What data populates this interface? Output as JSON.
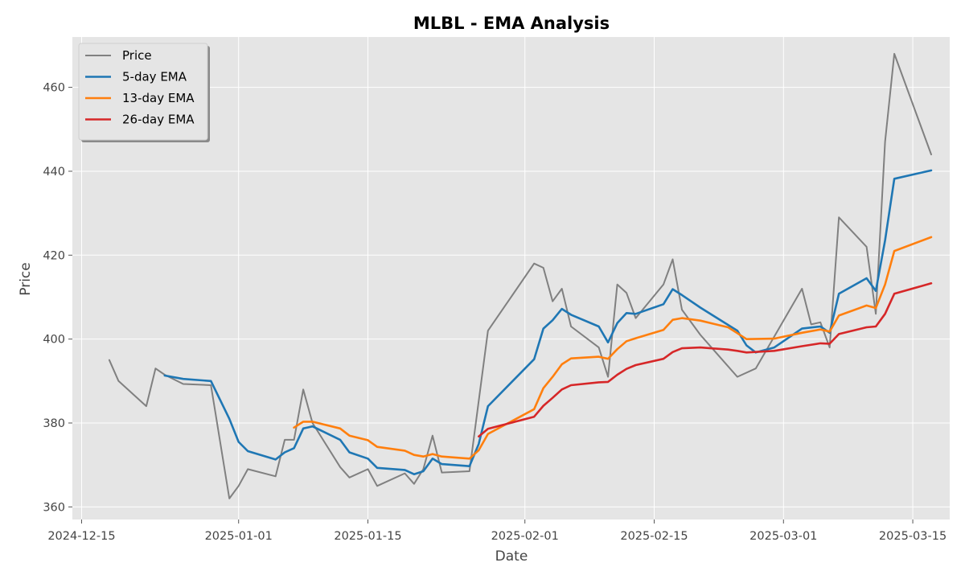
{
  "chart_data": {
    "type": "line",
    "title": "MLBL - EMA Analysis",
    "xlabel": "Date",
    "ylabel": "Price",
    "xlim": [
      "2024-12-14",
      "2025-03-19"
    ],
    "ylim": [
      357,
      472
    ],
    "x_ticks": [
      "2024-12-15",
      "2025-01-01",
      "2025-01-15",
      "2025-02-01",
      "2025-02-15",
      "2025-03-01",
      "2025-03-15"
    ],
    "y_ticks": [
      360,
      380,
      400,
      420,
      440,
      460
    ],
    "grid": true,
    "legend_position": "top-left",
    "colors": {
      "plot_background": "#e5e5e5",
      "grid": "#ffffff",
      "Price": "#808080",
      "5-day EMA": "#1f77b4",
      "13-day EMA": "#ff7f0e",
      "26-day EMA": "#d62728"
    },
    "series": [
      {
        "name": "Price",
        "points": [
          [
            "2024-12-18",
            395.0
          ],
          [
            "2024-12-19",
            390.0
          ],
          [
            "2024-12-22",
            384.0
          ],
          [
            "2024-12-23",
            393.0
          ],
          [
            "2024-12-24",
            391.5
          ],
          [
            "2024-12-26",
            389.3
          ],
          [
            "2024-12-29",
            389.0
          ],
          [
            "2024-12-31",
            362.0
          ],
          [
            "2025-01-01",
            365.0
          ],
          [
            "2025-01-02",
            369.0
          ],
          [
            "2025-01-05",
            367.3
          ],
          [
            "2025-01-06",
            376.0
          ],
          [
            "2025-01-07",
            376.0
          ],
          [
            "2025-01-08",
            388.0
          ],
          [
            "2025-01-09",
            380.0
          ],
          [
            "2025-01-12",
            369.5
          ],
          [
            "2025-01-13",
            367.0
          ],
          [
            "2025-01-15",
            369.0
          ],
          [
            "2025-01-16",
            365.0
          ],
          [
            "2025-01-19",
            368.0
          ],
          [
            "2025-01-20",
            365.5
          ],
          [
            "2025-01-21",
            369.0
          ],
          [
            "2025-01-22",
            377.0
          ],
          [
            "2025-01-23",
            368.2
          ],
          [
            "2025-01-26",
            368.5
          ],
          [
            "2025-01-28",
            402.0
          ],
          [
            "2025-02-02",
            418.0
          ],
          [
            "2025-02-03",
            417.0
          ],
          [
            "2025-02-04",
            409.0
          ],
          [
            "2025-02-05",
            412.0
          ],
          [
            "2025-02-06",
            403.0
          ],
          [
            "2025-02-09",
            398.0
          ],
          [
            "2025-02-10",
            391.0
          ],
          [
            "2025-02-11",
            413.0
          ],
          [
            "2025-02-12",
            411.0
          ],
          [
            "2025-02-13",
            405.0
          ],
          [
            "2025-02-16",
            413.0
          ],
          [
            "2025-02-17",
            419.0
          ],
          [
            "2025-02-18",
            407.0
          ],
          [
            "2025-02-20",
            401.0
          ],
          [
            "2025-02-24",
            391.0
          ],
          [
            "2025-02-26",
            393.0
          ],
          [
            "2025-03-03",
            412.0
          ],
          [
            "2025-03-04",
            403.5
          ],
          [
            "2025-03-05",
            404.0
          ],
          [
            "2025-03-06",
            398.0
          ],
          [
            "2025-03-07",
            429.0
          ],
          [
            "2025-03-10",
            422.0
          ],
          [
            "2025-03-11",
            406.0
          ],
          [
            "2025-03-12",
            447.0
          ],
          [
            "2025-03-13",
            468.0
          ],
          [
            "2025-03-17",
            444.0
          ]
        ]
      },
      {
        "name": "5-day EMA",
        "points": [
          [
            "2024-12-24",
            391.3
          ],
          [
            "2024-12-26",
            390.5
          ],
          [
            "2024-12-29",
            390.0
          ],
          [
            "2024-12-31",
            381.0
          ],
          [
            "2025-01-01",
            375.5
          ],
          [
            "2025-01-02",
            373.3
          ],
          [
            "2025-01-05",
            371.3
          ],
          [
            "2025-01-06",
            373.0
          ],
          [
            "2025-01-07",
            374.0
          ],
          [
            "2025-01-08",
            378.7
          ],
          [
            "2025-01-09",
            379.2
          ],
          [
            "2025-01-12",
            376.0
          ],
          [
            "2025-01-13",
            373.0
          ],
          [
            "2025-01-15",
            371.5
          ],
          [
            "2025-01-16",
            369.3
          ],
          [
            "2025-01-19",
            368.8
          ],
          [
            "2025-01-20",
            367.8
          ],
          [
            "2025-01-21",
            368.5
          ],
          [
            "2025-01-22",
            371.5
          ],
          [
            "2025-01-23",
            370.2
          ],
          [
            "2025-01-26",
            369.7
          ],
          [
            "2025-01-27",
            375.0
          ],
          [
            "2025-01-28",
            384.0
          ],
          [
            "2025-02-02",
            395.2
          ],
          [
            "2025-02-03",
            402.5
          ],
          [
            "2025-02-04",
            404.5
          ],
          [
            "2025-02-05",
            407.2
          ],
          [
            "2025-02-06",
            405.8
          ],
          [
            "2025-02-09",
            403.0
          ],
          [
            "2025-02-10",
            399.2
          ],
          [
            "2025-02-11",
            403.8
          ],
          [
            "2025-02-12",
            406.2
          ],
          [
            "2025-02-13",
            406.0
          ],
          [
            "2025-02-16",
            408.3
          ],
          [
            "2025-02-17",
            411.9
          ],
          [
            "2025-02-18",
            410.5
          ],
          [
            "2025-02-20",
            407.5
          ],
          [
            "2025-02-24",
            402.0
          ],
          [
            "2025-02-25",
            398.5
          ],
          [
            "2025-02-26",
            396.8
          ],
          [
            "2025-02-28",
            398.0
          ],
          [
            "2025-03-03",
            402.5
          ],
          [
            "2025-03-05",
            403.0
          ],
          [
            "2025-03-06",
            401.5
          ],
          [
            "2025-03-07",
            410.8
          ],
          [
            "2025-03-10",
            414.5
          ],
          [
            "2025-03-11",
            411.5
          ],
          [
            "2025-03-12",
            423.5
          ],
          [
            "2025-03-13",
            438.2
          ],
          [
            "2025-03-17",
            440.2
          ]
        ]
      },
      {
        "name": "13-day EMA",
        "points": [
          [
            "2025-01-07",
            378.9
          ],
          [
            "2025-01-08",
            380.3
          ],
          [
            "2025-01-09",
            380.3
          ],
          [
            "2025-01-12",
            378.7
          ],
          [
            "2025-01-13",
            377.0
          ],
          [
            "2025-01-15",
            375.9
          ],
          [
            "2025-01-16",
            374.3
          ],
          [
            "2025-01-19",
            373.4
          ],
          [
            "2025-01-20",
            372.4
          ],
          [
            "2025-01-21",
            372.0
          ],
          [
            "2025-01-22",
            372.6
          ],
          [
            "2025-01-23",
            372.0
          ],
          [
            "2025-01-26",
            371.5
          ],
          [
            "2025-01-27",
            373.5
          ],
          [
            "2025-01-28",
            377.4
          ],
          [
            "2025-02-02",
            383.3
          ],
          [
            "2025-02-03",
            388.3
          ],
          [
            "2025-02-04",
            391.0
          ],
          [
            "2025-02-05",
            394.0
          ],
          [
            "2025-02-06",
            395.4
          ],
          [
            "2025-02-09",
            395.8
          ],
          [
            "2025-02-10",
            395.3
          ],
          [
            "2025-02-11",
            397.6
          ],
          [
            "2025-02-12",
            399.5
          ],
          [
            "2025-02-13",
            400.2
          ],
          [
            "2025-02-16",
            402.2
          ],
          [
            "2025-02-17",
            404.6
          ],
          [
            "2025-02-18",
            405.0
          ],
          [
            "2025-02-20",
            404.4
          ],
          [
            "2025-02-23",
            402.8
          ],
          [
            "2025-02-24",
            401.4
          ],
          [
            "2025-02-25",
            400.0
          ],
          [
            "2025-02-28",
            400.1
          ],
          [
            "2025-03-03",
            401.5
          ],
          [
            "2025-03-05",
            402.3
          ],
          [
            "2025-03-06",
            401.8
          ],
          [
            "2025-03-07",
            405.6
          ],
          [
            "2025-03-10",
            408.0
          ],
          [
            "2025-03-11",
            407.4
          ],
          [
            "2025-03-12",
            413.0
          ],
          [
            "2025-03-13",
            421.0
          ],
          [
            "2025-03-17",
            424.3
          ]
        ]
      },
      {
        "name": "26-day EMA",
        "points": [
          [
            "2025-01-27",
            376.8
          ],
          [
            "2025-01-28",
            378.6
          ],
          [
            "2025-02-02",
            381.5
          ],
          [
            "2025-02-03",
            384.1
          ],
          [
            "2025-02-04",
            386.0
          ],
          [
            "2025-02-05",
            388.0
          ],
          [
            "2025-02-06",
            389.0
          ],
          [
            "2025-02-09",
            389.7
          ],
          [
            "2025-02-10",
            389.8
          ],
          [
            "2025-02-11",
            391.5
          ],
          [
            "2025-02-12",
            392.9
          ],
          [
            "2025-02-13",
            393.8
          ],
          [
            "2025-02-16",
            395.3
          ],
          [
            "2025-02-17",
            396.9
          ],
          [
            "2025-02-18",
            397.8
          ],
          [
            "2025-02-20",
            398.0
          ],
          [
            "2025-02-23",
            397.5
          ],
          [
            "2025-02-24",
            397.2
          ],
          [
            "2025-02-25",
            396.8
          ],
          [
            "2025-02-28",
            397.2
          ],
          [
            "2025-03-03",
            398.3
          ],
          [
            "2025-03-05",
            399.0
          ],
          [
            "2025-03-06",
            398.9
          ],
          [
            "2025-03-07",
            401.2
          ],
          [
            "2025-03-10",
            402.8
          ],
          [
            "2025-03-11",
            403.0
          ],
          [
            "2025-03-12",
            406.0
          ],
          [
            "2025-03-13",
            410.8
          ],
          [
            "2025-03-17",
            413.3
          ]
        ]
      }
    ]
  }
}
